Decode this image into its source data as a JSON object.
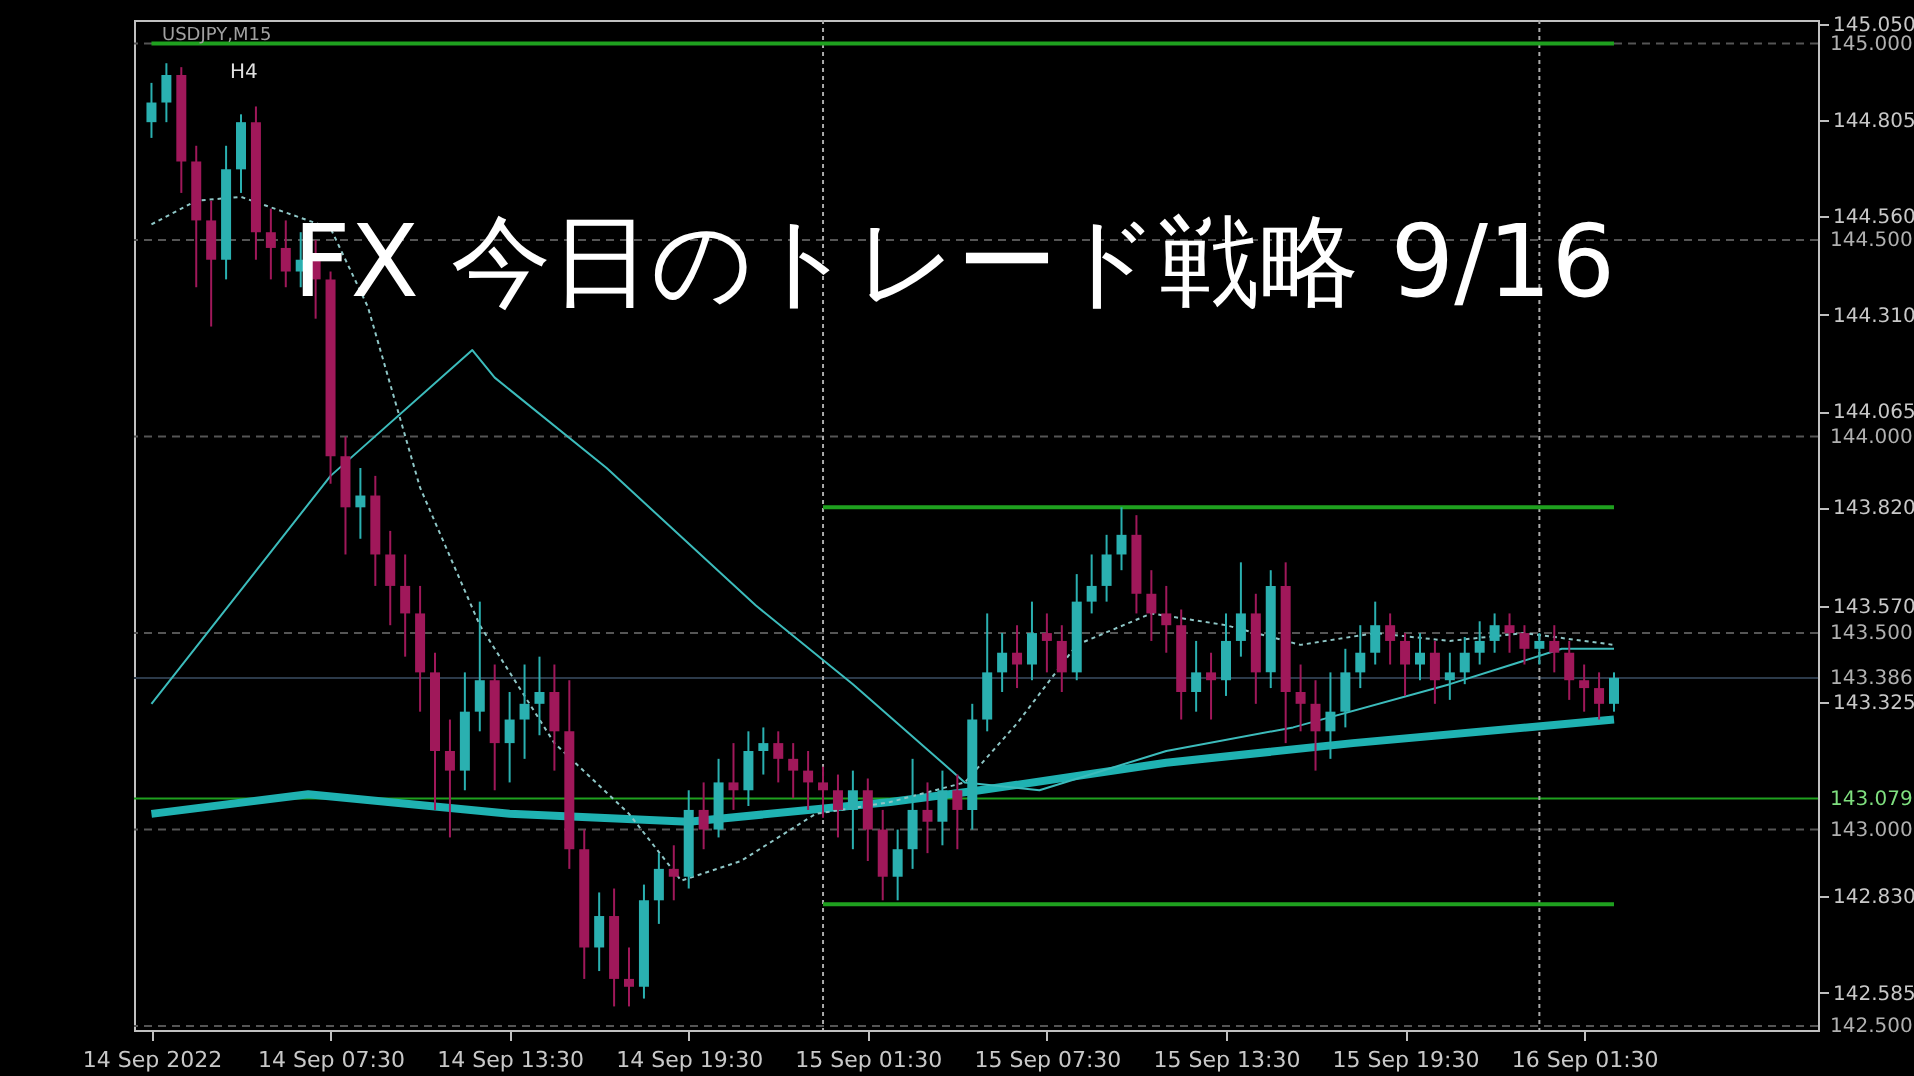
{
  "chart_data": {
    "type": "candlestick",
    "title": "FX 今日のトレード戦略 9/16",
    "annotations": [
      "USDJPY,M15",
      "H4"
    ],
    "xlim": [
      "2022-09-14T01:15",
      "2022-09-16T09:00"
    ],
    "xticks": [
      {
        "value": "2022-09-14T01:30",
        "label": "14 Sep 2022"
      },
      {
        "value": "2022-09-14T07:30",
        "label": "14 Sep 07:30"
      },
      {
        "value": "2022-09-14T13:30",
        "label": "14 Sep 13:30"
      },
      {
        "value": "2022-09-14T19:30",
        "label": "14 Sep 19:30"
      },
      {
        "value": "2022-09-15T01:30",
        "label": "15 Sep 01:30"
      },
      {
        "value": "2022-09-15T07:30",
        "label": "15 Sep 07:30"
      },
      {
        "value": "2022-09-15T13:30",
        "label": "15 Sep 13:30"
      },
      {
        "value": "2022-09-15T19:30",
        "label": "15 Sep 19:30"
      },
      {
        "value": "2022-09-16T01:30",
        "label": "16 Sep 01:30"
      }
    ],
    "ylim": [
      142.49,
      145.06
    ],
    "yticks": [
      {
        "value": 145.05,
        "label": "145.050"
      },
      {
        "value": 144.805,
        "label": "144.805"
      },
      {
        "value": 144.56,
        "label": "144.560"
      },
      {
        "value": 144.31,
        "label": "144.310"
      },
      {
        "value": 144.065,
        "label": "144.065"
      },
      {
        "value": 143.82,
        "label": "143.820"
      },
      {
        "value": 143.57,
        "label": "143.570"
      },
      {
        "value": 143.325,
        "label": "143.325"
      },
      {
        "value": 142.83,
        "label": "142.830"
      },
      {
        "value": 142.585,
        "label": "142.585"
      }
    ],
    "x": [
      "2022-09-14T01:30",
      "2022-09-14T02:00",
      "2022-09-14T02:30",
      "2022-09-14T03:00",
      "2022-09-14T03:30",
      "2022-09-14T04:00",
      "2022-09-14T04:30",
      "2022-09-14T05:00",
      "2022-09-14T05:30",
      "2022-09-14T06:00",
      "2022-09-14T06:30",
      "2022-09-14T07:00",
      "2022-09-14T07:30",
      "2022-09-14T08:00",
      "2022-09-14T08:30",
      "2022-09-14T09:00",
      "2022-09-14T09:30",
      "2022-09-14T10:00",
      "2022-09-14T10:30",
      "2022-09-14T11:00",
      "2022-09-14T11:30",
      "2022-09-14T12:00",
      "2022-09-14T12:30",
      "2022-09-14T13:00",
      "2022-09-14T13:30",
      "2022-09-14T14:00",
      "2022-09-14T14:30",
      "2022-09-14T15:00",
      "2022-09-14T15:30",
      "2022-09-14T16:00",
      "2022-09-14T16:30",
      "2022-09-14T17:00",
      "2022-09-14T17:30",
      "2022-09-14T18:00",
      "2022-09-14T18:30",
      "2022-09-14T19:00",
      "2022-09-14T19:30",
      "2022-09-14T20:00",
      "2022-09-14T20:30",
      "2022-09-14T21:00",
      "2022-09-14T21:30",
      "2022-09-14T22:00",
      "2022-09-14T22:30",
      "2022-09-14T23:00",
      "2022-09-14T23:30",
      "2022-09-15T00:00",
      "2022-09-15T00:30",
      "2022-09-15T01:00",
      "2022-09-15T01:30",
      "2022-09-15T02:00",
      "2022-09-15T02:30",
      "2022-09-15T03:00",
      "2022-09-15T03:30",
      "2022-09-15T04:00",
      "2022-09-15T04:30",
      "2022-09-15T05:00",
      "2022-09-15T05:30",
      "2022-09-15T06:00",
      "2022-09-15T06:30",
      "2022-09-15T07:00",
      "2022-09-15T07:30",
      "2022-09-15T08:00",
      "2022-09-15T08:30",
      "2022-09-15T09:00",
      "2022-09-15T09:30",
      "2022-09-15T10:00",
      "2022-09-15T10:30",
      "2022-09-15T11:00",
      "2022-09-15T11:30",
      "2022-09-15T12:00",
      "2022-09-15T12:30",
      "2022-09-15T13:00",
      "2022-09-15T13:30",
      "2022-09-15T14:00",
      "2022-09-15T14:30",
      "2022-09-15T15:00",
      "2022-09-15T15:30",
      "2022-09-15T16:00",
      "2022-09-15T16:30",
      "2022-09-15T17:00",
      "2022-09-15T17:30",
      "2022-09-15T18:00",
      "2022-09-15T18:30",
      "2022-09-15T19:00",
      "2022-09-15T19:30",
      "2022-09-15T20:00",
      "2022-09-15T20:30",
      "2022-09-15T21:00",
      "2022-09-15T21:30",
      "2022-09-15T22:00",
      "2022-09-15T22:30",
      "2022-09-15T23:00",
      "2022-09-15T23:30",
      "2022-09-16T00:00",
      "2022-09-16T00:30",
      "2022-09-16T01:00",
      "2022-09-16T01:30",
      "2022-09-16T02:00",
      "2022-09-16T02:30"
    ],
    "ohlc": [
      [
        144.8,
        144.9,
        144.76,
        144.85
      ],
      [
        144.85,
        144.95,
        144.8,
        144.92
      ],
      [
        144.92,
        144.94,
        144.62,
        144.7
      ],
      [
        144.7,
        144.74,
        144.38,
        144.55
      ],
      [
        144.55,
        144.6,
        144.28,
        144.45
      ],
      [
        144.45,
        144.74,
        144.4,
        144.68
      ],
      [
        144.68,
        144.82,
        144.62,
        144.8
      ],
      [
        144.8,
        144.84,
        144.45,
        144.52
      ],
      [
        144.52,
        144.58,
        144.4,
        144.48
      ],
      [
        144.48,
        144.55,
        144.38,
        144.42
      ],
      [
        144.42,
        144.52,
        144.38,
        144.45
      ],
      [
        144.45,
        144.5,
        144.3,
        144.4
      ],
      [
        144.4,
        144.42,
        143.88,
        143.95
      ],
      [
        143.95,
        144.0,
        143.7,
        143.82
      ],
      [
        143.82,
        143.92,
        143.74,
        143.85
      ],
      [
        143.85,
        143.9,
        143.62,
        143.7
      ],
      [
        143.7,
        143.76,
        143.52,
        143.62
      ],
      [
        143.62,
        143.7,
        143.44,
        143.55
      ],
      [
        143.55,
        143.62,
        143.3,
        143.4
      ],
      [
        143.4,
        143.45,
        143.05,
        143.2
      ],
      [
        143.2,
        143.28,
        142.98,
        143.15
      ],
      [
        143.15,
        143.4,
        143.1,
        143.3
      ],
      [
        143.3,
        143.58,
        143.25,
        143.38
      ],
      [
        143.38,
        143.42,
        143.1,
        143.22
      ],
      [
        143.22,
        143.35,
        143.12,
        143.28
      ],
      [
        143.28,
        143.42,
        143.18,
        143.32
      ],
      [
        143.32,
        143.44,
        143.24,
        143.35
      ],
      [
        143.35,
        143.42,
        143.15,
        143.25
      ],
      [
        143.25,
        143.38,
        142.9,
        142.95
      ],
      [
        142.95,
        143.0,
        142.62,
        142.7
      ],
      [
        142.7,
        142.84,
        142.64,
        142.78
      ],
      [
        142.78,
        142.85,
        142.55,
        142.62
      ],
      [
        142.62,
        142.7,
        142.55,
        142.6
      ],
      [
        142.6,
        142.86,
        142.57,
        142.82
      ],
      [
        142.82,
        142.94,
        142.76,
        142.9
      ],
      [
        142.9,
        142.96,
        142.82,
        142.88
      ],
      [
        142.88,
        143.1,
        142.85,
        143.05
      ],
      [
        143.05,
        143.12,
        142.95,
        143.0
      ],
      [
        143.0,
        143.18,
        142.98,
        143.12
      ],
      [
        143.12,
        143.22,
        143.05,
        143.1
      ],
      [
        143.1,
        143.25,
        143.06,
        143.2
      ],
      [
        143.2,
        143.26,
        143.14,
        143.22
      ],
      [
        143.22,
        143.25,
        143.12,
        143.18
      ],
      [
        143.18,
        143.22,
        143.08,
        143.15
      ],
      [
        143.15,
        143.2,
        143.05,
        143.12
      ],
      [
        143.12,
        143.16,
        143.03,
        143.1
      ],
      [
        143.1,
        143.14,
        142.98,
        143.05
      ],
      [
        143.05,
        143.15,
        142.95,
        143.1
      ],
      [
        143.1,
        143.13,
        142.92,
        143.0
      ],
      [
        143.0,
        143.05,
        142.82,
        142.88
      ],
      [
        142.88,
        143.0,
        142.82,
        142.95
      ],
      [
        142.95,
        143.18,
        142.9,
        143.05
      ],
      [
        143.05,
        143.12,
        142.94,
        143.02
      ],
      [
        143.02,
        143.15,
        142.96,
        143.1
      ],
      [
        143.1,
        143.14,
        142.95,
        143.05
      ],
      [
        143.05,
        143.32,
        143.0,
        143.28
      ],
      [
        143.28,
        143.55,
        143.25,
        143.4
      ],
      [
        143.4,
        143.5,
        143.35,
        143.45
      ],
      [
        143.45,
        143.52,
        143.36,
        143.42
      ],
      [
        143.42,
        143.58,
        143.38,
        143.5
      ],
      [
        143.5,
        143.55,
        143.4,
        143.48
      ],
      [
        143.48,
        143.52,
        143.35,
        143.4
      ],
      [
        143.4,
        143.65,
        143.38,
        143.58
      ],
      [
        143.58,
        143.7,
        143.55,
        143.62
      ],
      [
        143.62,
        143.75,
        143.58,
        143.7
      ],
      [
        143.7,
        143.82,
        143.66,
        143.75
      ],
      [
        143.75,
        143.8,
        143.55,
        143.6
      ],
      [
        143.6,
        143.66,
        143.48,
        143.55
      ],
      [
        143.55,
        143.62,
        143.45,
        143.52
      ],
      [
        143.52,
        143.56,
        143.28,
        143.35
      ],
      [
        143.35,
        143.48,
        143.3,
        143.4
      ],
      [
        143.4,
        143.45,
        143.28,
        143.38
      ],
      [
        143.38,
        143.55,
        143.34,
        143.48
      ],
      [
        143.48,
        143.68,
        143.44,
        143.55
      ],
      [
        143.55,
        143.6,
        143.32,
        143.4
      ],
      [
        143.4,
        143.66,
        143.36,
        143.62
      ],
      [
        143.62,
        143.68,
        143.22,
        143.35
      ],
      [
        143.35,
        143.42,
        143.25,
        143.32
      ],
      [
        143.32,
        143.38,
        143.15,
        143.25
      ],
      [
        143.25,
        143.4,
        143.18,
        143.3
      ],
      [
        143.3,
        143.46,
        143.26,
        143.4
      ],
      [
        143.4,
        143.52,
        143.36,
        143.45
      ],
      [
        143.45,
        143.58,
        143.42,
        143.52
      ],
      [
        143.52,
        143.55,
        143.42,
        143.48
      ],
      [
        143.48,
        143.5,
        143.34,
        143.42
      ],
      [
        143.42,
        143.5,
        143.38,
        143.45
      ],
      [
        143.45,
        143.48,
        143.32,
        143.38
      ],
      [
        143.38,
        143.45,
        143.33,
        143.4
      ],
      [
        143.4,
        143.49,
        143.37,
        143.45
      ],
      [
        143.45,
        143.53,
        143.42,
        143.48
      ],
      [
        143.48,
        143.55,
        143.45,
        143.52
      ],
      [
        143.52,
        143.55,
        143.45,
        143.5
      ],
      [
        143.5,
        143.52,
        143.42,
        143.46
      ],
      [
        143.46,
        143.5,
        143.42,
        143.48
      ],
      [
        143.48,
        143.52,
        143.4,
        143.45
      ],
      [
        143.45,
        143.48,
        143.33,
        143.38
      ],
      [
        143.38,
        143.42,
        143.3,
        143.36
      ],
      [
        143.36,
        143.4,
        143.28,
        143.32
      ],
      [
        143.32,
        143.4,
        143.3,
        143.386
      ]
    ],
    "colors": [
      "#2ab0b0",
      "#2ab0b0",
      "#a0185a",
      "#a0185a",
      "#a0185a",
      "#2ab0b0",
      "#2ab0b0",
      "#a0185a",
      "#a0185a",
      "#a0185a",
      "#2ab0b0",
      "#a0185a",
      "#a0185a",
      "#a0185a",
      "#2ab0b0",
      "#a0185a",
      "#a0185a",
      "#a0185a",
      "#a0185a",
      "#a0185a",
      "#a0185a",
      "#2ab0b0",
      "#2ab0b0",
      "#a0185a",
      "#2ab0b0",
      "#2ab0b0",
      "#2ab0b0",
      "#a0185a",
      "#a0185a",
      "#a0185a",
      "#2ab0b0",
      "#a0185a",
      "#a0185a",
      "#2ab0b0",
      "#2ab0b0",
      "#a0185a",
      "#2ab0b0",
      "#a0185a",
      "#2ab0b0",
      "#a0185a",
      "#2ab0b0",
      "#2ab0b0",
      "#a0185a",
      "#a0185a",
      "#a0185a",
      "#a0185a",
      "#a0185a",
      "#2ab0b0",
      "#a0185a",
      "#a0185a",
      "#2ab0b0",
      "#2ab0b0",
      "#a0185a",
      "#2ab0b0",
      "#a0185a",
      "#2ab0b0",
      "#2ab0b0",
      "#2ab0b0",
      "#a0185a",
      "#2ab0b0",
      "#a0185a",
      "#a0185a",
      "#2ab0b0",
      "#2ab0b0",
      "#2ab0b0",
      "#2ab0b0",
      "#a0185a",
      "#a0185a",
      "#a0185a",
      "#a0185a",
      "#2ab0b0",
      "#a0185a",
      "#2ab0b0",
      "#2ab0b0",
      "#a0185a",
      "#2ab0b0",
      "#a0185a",
      "#a0185a",
      "#a0185a",
      "#2ab0b0",
      "#2ab0b0",
      "#2ab0b0",
      "#2ab0b0",
      "#a0185a",
      "#a0185a",
      "#2ab0b0",
      "#a0185a",
      "#2ab0b0",
      "#2ab0b0",
      "#2ab0b0",
      "#2ab0b0",
      "#a0185a",
      "#a0185a",
      "#2ab0b0",
      "#a0185a",
      "#a0185a",
      "#a0185a",
      "#a0185a",
      "#2ab0b0"
    ],
    "series": [
      {
        "type": "line",
        "color": "#1fb2b2",
        "x": [
          "2022-09-14T01:30",
          "2022-09-14T06:45",
          "2022-09-14T13:30",
          "2022-09-14T19:30",
          "2022-09-15T02:15",
          "2022-09-15T05:15",
          "2022-09-15T11:30",
          "2022-09-15T17:45",
          "2022-09-16T02:30"
        ],
        "values": [
          143.04,
          143.09,
          143.04,
          143.02,
          143.07,
          143.1,
          143.17,
          143.22,
          143.28
        ]
      },
      {
        "type": "line",
        "color": "#3cbcbc",
        "x": [
          "2022-09-14T01:30",
          "2022-09-14T07:30",
          "2022-09-14T12:15",
          "2022-09-14T13:00",
          "2022-09-14T16:45",
          "2022-09-14T21:45",
          "2022-09-15T01:00",
          "2022-09-15T04:45",
          "2022-09-15T07:15",
          "2022-09-15T11:30",
          "2022-09-15T15:45",
          "2022-09-15T21:00",
          "2022-09-16T00:45",
          "2022-09-16T02:30"
        ],
        "values": [
          143.32,
          143.9,
          144.22,
          144.15,
          143.92,
          143.57,
          143.37,
          143.12,
          143.1,
          143.2,
          143.26,
          143.37,
          143.46,
          143.46
        ]
      },
      {
        "type": "line",
        "color": "#8ec6c6",
        "line_style": "dotted",
        "x": [
          "2022-09-14T01:30",
          "2022-09-14T03:00",
          "2022-09-14T04:30",
          "2022-09-14T07:30",
          "2022-09-14T08:45",
          "2022-09-14T10:30",
          "2022-09-14T12:30",
          "2022-09-14T15:00",
          "2022-09-14T17:30",
          "2022-09-14T19:15",
          "2022-09-14T21:15",
          "2022-09-14T23:45",
          "2022-09-15T02:15",
          "2022-09-15T04:45",
          "2022-09-15T06:30",
          "2022-09-15T08:30",
          "2022-09-15T11:00",
          "2022-09-15T13:30",
          "2022-09-15T16:00",
          "2022-09-15T18:30",
          "2022-09-15T21:00",
          "2022-09-15T23:30",
          "2022-09-16T02:30"
        ],
        "values": [
          144.54,
          144.6,
          144.61,
          144.53,
          144.33,
          143.87,
          143.52,
          143.22,
          143.04,
          142.87,
          142.92,
          143.04,
          143.07,
          143.12,
          143.27,
          143.47,
          143.55,
          143.52,
          143.47,
          143.5,
          143.48,
          143.5,
          143.47
        ]
      },
      {
        "type": "line",
        "color": "#1fa01f",
        "x": [
          "2022-09-14T01:30",
          "2022-09-16T02:30"
        ],
        "values": [
          145.0,
          145.0
        ]
      },
      {
        "type": "line",
        "color": "#1fa01f",
        "x": [
          "2022-09-15T00:00",
          "2022-09-16T02:30"
        ],
        "values": [
          143.82,
          143.82
        ]
      },
      {
        "type": "line",
        "color": "#1fa01f",
        "x": [
          "2022-09-15T00:00",
          "2022-09-16T02:30"
        ],
        "values": [
          142.81,
          142.81
        ]
      }
    ],
    "ref_lines": [
      {
        "axis": "y",
        "value": 145.0,
        "label": "145.000",
        "color": "#555555",
        "line_style": "dashed"
      },
      {
        "axis": "y",
        "value": 144.5,
        "label": "144.500",
        "color": "#555555",
        "line_style": "dashed"
      },
      {
        "axis": "y",
        "value": 144.0,
        "label": "144.000",
        "color": "#555555",
        "line_style": "dashed"
      },
      {
        "axis": "y",
        "value": 143.5,
        "label": "143.500",
        "color": "#555555",
        "line_style": "dashed"
      },
      {
        "axis": "y",
        "value": 143.0,
        "label": "143.000",
        "color": "#555555",
        "line_style": "dashed"
      },
      {
        "axis": "y",
        "value": 142.5,
        "label": "142.500",
        "color": "#555555",
        "line_style": "dashed"
      },
      {
        "axis": "y",
        "value": 143.386,
        "label": "143.386",
        "color": "#2c3a4a",
        "line_style": "solid"
      },
      {
        "axis": "y",
        "value": 143.079,
        "label": "143.079",
        "color": "#1fa01f",
        "line_style": "solid"
      },
      {
        "axis": "x",
        "value": "2022-09-15T00:00",
        "color": "#aaaaaa",
        "line_style": "dotted"
      },
      {
        "axis": "x",
        "value": "2022-09-16T00:00",
        "color": "#aaaaaa",
        "line_style": "dotted"
      }
    ]
  }
}
